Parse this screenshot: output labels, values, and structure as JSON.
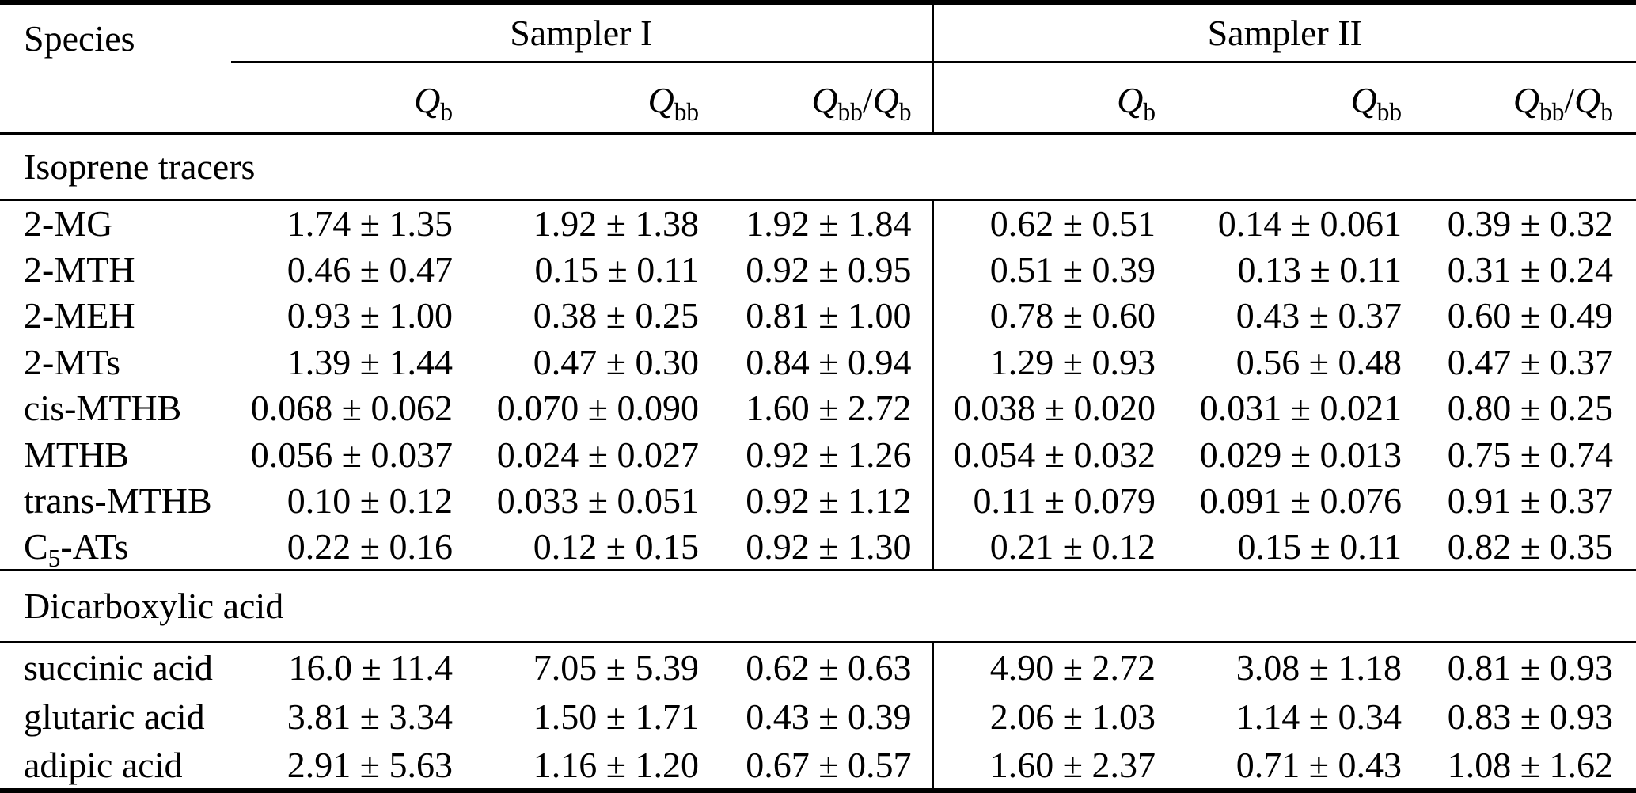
{
  "colors": {
    "text": "#000000",
    "background": "#ffffff",
    "rule": "#000000"
  },
  "table": {
    "species_header": "Species",
    "groups": [
      {
        "label": "Sampler I"
      },
      {
        "label": "Sampler II"
      }
    ],
    "subheaders": [
      [
        {
          "t": "Q",
          "s": "i"
        },
        {
          "t": "b",
          "s": "sub"
        }
      ],
      [
        {
          "t": "Q",
          "s": "i"
        },
        {
          "t": "bb",
          "s": "sub"
        }
      ],
      [
        {
          "t": "Q",
          "s": "i"
        },
        {
          "t": "bb",
          "s": "sub"
        },
        {
          "t": "/",
          "s": ""
        },
        {
          "t": "Q",
          "s": "i"
        },
        {
          "t": "b",
          "s": "sub"
        }
      ],
      [
        {
          "t": "Q",
          "s": "i"
        },
        {
          "t": "b",
          "s": "sub"
        }
      ],
      [
        {
          "t": "Q",
          "s": "i"
        },
        {
          "t": "bb",
          "s": "sub"
        }
      ],
      [
        {
          "t": "Q",
          "s": "i"
        },
        {
          "t": "bb",
          "s": "sub"
        },
        {
          "t": "/",
          "s": ""
        },
        {
          "t": "Q",
          "s": "i"
        },
        {
          "t": "b",
          "s": "sub"
        }
      ]
    ],
    "sections": [
      {
        "title": "Isoprene tracers",
        "rows": [
          {
            "species": [
              {
                "t": "2-MG",
                "s": ""
              }
            ],
            "values": [
              "1.74 ± 1.35",
              "1.92 ± 1.38",
              "1.92 ± 1.84",
              "0.62 ± 0.51",
              "0.14 ± 0.061",
              "0.39 ± 0.32"
            ]
          },
          {
            "species": [
              {
                "t": "2-MTH",
                "s": ""
              }
            ],
            "values": [
              "0.46 ± 0.47",
              "0.15 ± 0.11",
              "0.92 ± 0.95",
              "0.51 ± 0.39",
              "0.13 ± 0.11",
              "0.31 ± 0.24"
            ]
          },
          {
            "species": [
              {
                "t": "2-MEH",
                "s": ""
              }
            ],
            "values": [
              "0.93 ± 1.00",
              "0.38 ± 0.25",
              "0.81 ± 1.00",
              "0.78 ± 0.60",
              "0.43 ± 0.37",
              "0.60 ± 0.49"
            ]
          },
          {
            "species": [
              {
                "t": "2-MTs",
                "s": ""
              }
            ],
            "values": [
              "1.39 ± 1.44",
              "0.47 ± 0.30",
              "0.84 ± 0.94",
              "1.29 ± 0.93",
              "0.56 ± 0.48",
              "0.47 ± 0.37"
            ]
          },
          {
            "species": [
              {
                "t": "cis-MTHB",
                "s": ""
              }
            ],
            "values": [
              "0.068 ± 0.062",
              "0.070 ± 0.090",
              "1.60 ± 2.72",
              "0.038 ± 0.020",
              "0.031 ± 0.021",
              "0.80 ± 0.25"
            ]
          },
          {
            "species": [
              {
                "t": "MTHB",
                "s": ""
              }
            ],
            "values": [
              "0.056 ± 0.037",
              "0.024 ± 0.027",
              "0.92 ± 1.26",
              "0.054 ± 0.032",
              "0.029 ± 0.013",
              "0.75 ± 0.74"
            ]
          },
          {
            "species": [
              {
                "t": "trans-MTHB",
                "s": ""
              }
            ],
            "values": [
              "0.10 ± 0.12",
              "0.033 ± 0.051",
              "0.92 ± 1.12",
              "0.11 ± 0.079",
              "0.091 ± 0.076",
              "0.91 ± 0.37"
            ]
          },
          {
            "species": [
              {
                "t": "C",
                "s": ""
              },
              {
                "t": "5",
                "s": "sub"
              },
              {
                "t": "-ATs",
                "s": ""
              }
            ],
            "values": [
              "0.22 ± 0.16",
              "0.12 ± 0.15",
              "0.92 ± 1.30",
              "0.21 ± 0.12",
              "0.15 ± 0.11",
              "0.82 ± 0.35"
            ]
          }
        ]
      },
      {
        "title": "Dicarboxylic acid",
        "rows": [
          {
            "species": [
              {
                "t": "succinic acid",
                "s": ""
              }
            ],
            "values": [
              "16.0 ± 11.4",
              "7.05 ± 5.39",
              "0.62 ± 0.63",
              "4.90 ± 2.72",
              "3.08 ± 1.18",
              "0.81 ± 0.93"
            ]
          },
          {
            "species": [
              {
                "t": "glutaric acid",
                "s": ""
              }
            ],
            "values": [
              "3.81 ± 3.34",
              "1.50 ± 1.71",
              "0.43 ± 0.39",
              "2.06 ± 1.03",
              "1.14 ± 0.34",
              "0.83 ± 0.93"
            ]
          },
          {
            "species": [
              {
                "t": "adipic acid",
                "s": ""
              }
            ],
            "values": [
              "2.91 ± 5.63",
              "1.16 ± 1.20",
              "0.67 ± 0.57",
              "1.60 ± 2.37",
              "0.71 ± 0.43",
              "1.08 ± 1.62"
            ]
          }
        ]
      }
    ]
  }
}
